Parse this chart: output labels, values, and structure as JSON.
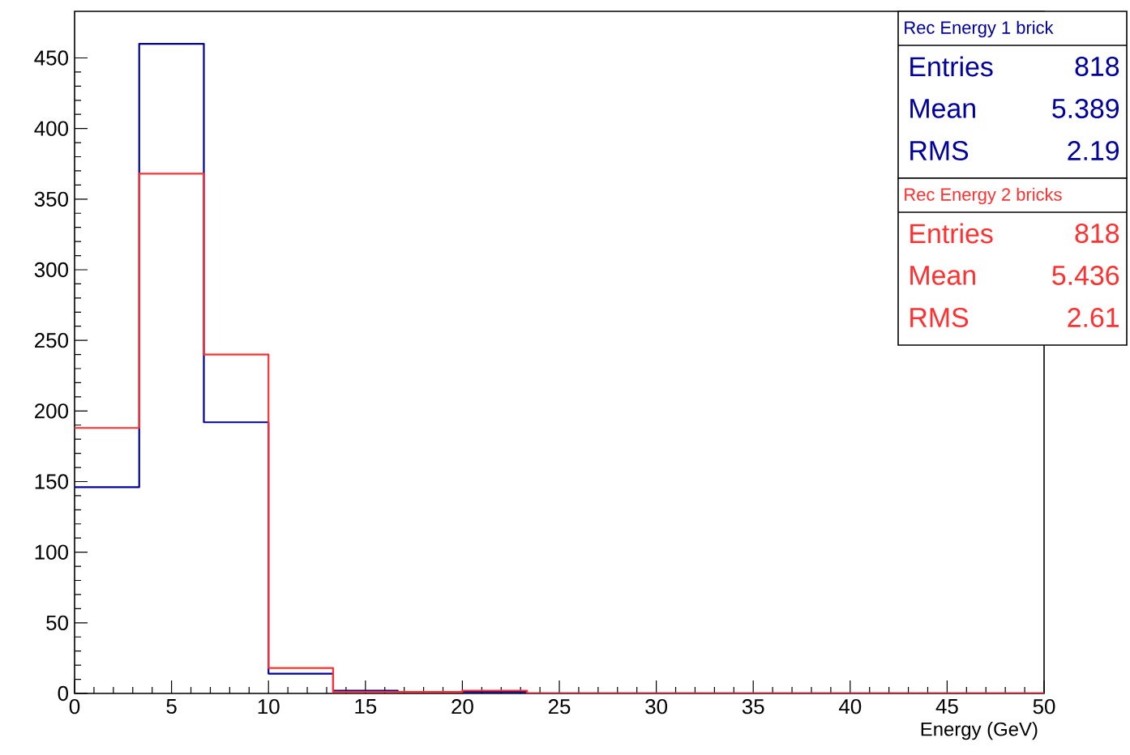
{
  "chart_data": {
    "type": "histogram",
    "xlabel": "Energy (GeV)",
    "bins": [
      0,
      3.333,
      6.667,
      10,
      13.333,
      16.667,
      20,
      23.333,
      26.667,
      30,
      33.333,
      36.667,
      40,
      43.333,
      46.667,
      50
    ],
    "series": [
      {
        "name": "Rec Energy 1 brick",
        "color": "#00009c",
        "values": [
          146,
          460,
          192,
          14,
          2,
          1,
          1,
          0,
          0,
          0,
          0,
          0,
          0,
          0,
          0
        ]
      },
      {
        "name": "Rec Energy 2 bricks",
        "color": "#ff3030",
        "values": [
          188,
          368,
          240,
          18,
          1,
          1,
          2,
          0,
          0,
          0,
          0,
          0,
          0,
          0,
          0
        ]
      }
    ],
    "annotations": [
      "Entries",
      "818",
      "Mean",
      "5.389",
      "RMS",
      "2.19",
      "Entries",
      "818",
      "Mean",
      "5.436",
      "RMS",
      "2.61"
    ],
    "xlim": [
      0,
      50
    ],
    "ylim": [
      0,
      483
    ],
    "xticks": [
      0,
      5,
      10,
      15,
      20,
      25,
      30,
      35,
      40,
      45,
      50
    ],
    "yticks": [
      0,
      50,
      100,
      150,
      200,
      250,
      300,
      350,
      400,
      450
    ],
    "grid": false,
    "legend": "top right"
  }
}
